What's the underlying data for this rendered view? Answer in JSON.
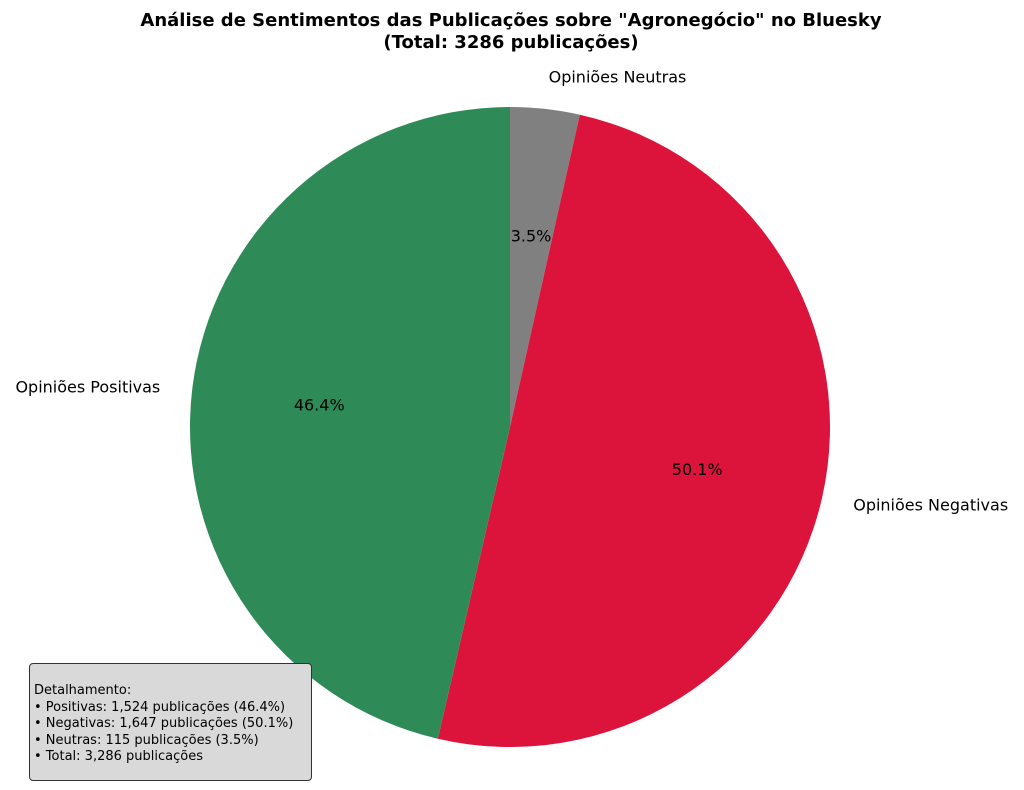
{
  "chart_data": {
    "type": "pie",
    "title": "Análise de Sentimentos das Publicações sobre \"Agronegócio\" no Bluesky",
    "subtitle": "(Total: 3286 publicações)",
    "start_angle_deg": 90,
    "direction": "clockwise",
    "slices": [
      {
        "label": "Opiniões Neutras",
        "value": 115,
        "percent_label": "3.5%",
        "color": "#808080"
      },
      {
        "label": "Opiniões Negativas",
        "value": 1647,
        "percent_label": "50.1%",
        "color": "#dc143c"
      },
      {
        "label": "Opiniões Positivas",
        "value": 1524,
        "percent_label": "46.4%",
        "color": "#2e8b57"
      }
    ]
  },
  "details": {
    "heading": "Detalhamento:",
    "lines": [
      "• Positivas: 1,524 publicações (46.4%)",
      "• Negativas: 1,647 publicações (50.1%)",
      "• Neutras: 115 publicações (3.5%)",
      "• Total: 3,286 publicações"
    ]
  }
}
